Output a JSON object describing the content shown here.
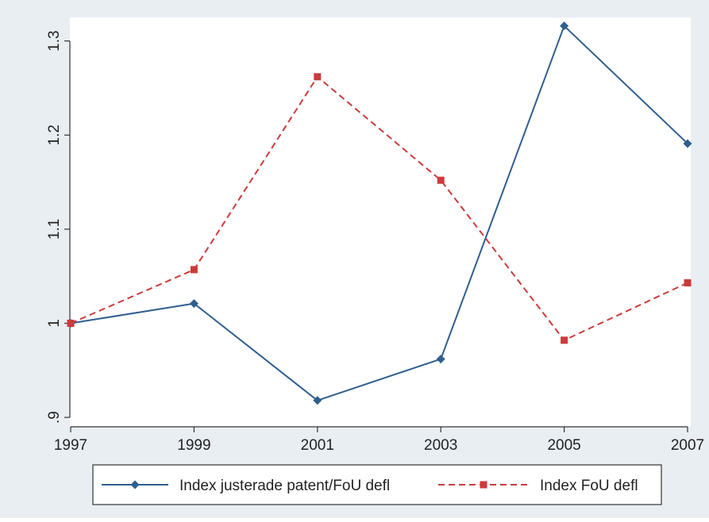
{
  "chart_data": {
    "type": "line",
    "title": "",
    "xlabel": "",
    "ylabel": "",
    "x": [
      1997,
      1999,
      2001,
      2003,
      2005,
      2007
    ],
    "x_ticks": [
      "1997",
      "1999",
      "2001",
      "2003",
      "2005",
      "2007"
    ],
    "y_ticks": [
      ".9",
      "1",
      "1.1",
      "1.2",
      "1.3"
    ],
    "y_tick_values": [
      0.9,
      1.0,
      1.1,
      1.2,
      1.3
    ],
    "xlim": [
      1997,
      2007
    ],
    "ylim": [
      0.89,
      1.325
    ],
    "grid": false,
    "legend_position": "bottom",
    "series": [
      {
        "name": "Index justerade patent/FoU defl",
        "values": [
          1.0,
          1.021,
          0.918,
          0.962,
          1.316,
          1.191
        ],
        "color": "#2f5f8f",
        "line_style": "solid",
        "marker": "diamond"
      },
      {
        "name": "Index FoU defl",
        "values": [
          1.0,
          1.057,
          1.262,
          1.152,
          0.982,
          1.043
        ],
        "color": "#cc3b3b",
        "line_style": "dashed",
        "marker": "square"
      }
    ],
    "colors": {
      "outer_background": "#e9eef3",
      "plot_background": "#ffffff",
      "axis": "#333333"
    }
  }
}
